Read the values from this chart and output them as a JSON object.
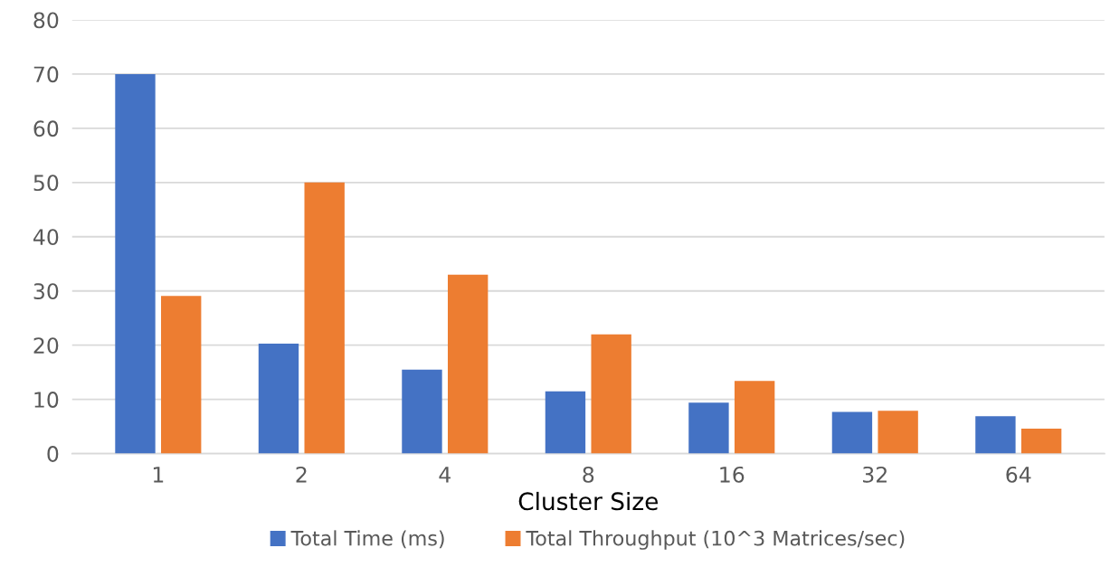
{
  "chart_data": {
    "type": "bar",
    "xlabel": "Cluster Size",
    "categories": [
      "1",
      "2",
      "4",
      "8",
      "16",
      "32",
      "64"
    ],
    "series": [
      {
        "name": "Total Time (ms)",
        "color": "#4472c4",
        "values": [
          70,
          20.3,
          15.5,
          11.5,
          9.4,
          7.7,
          6.9
        ]
      },
      {
        "name": "Total Throughput (10^3 Matrices/sec)",
        "color": "#ed7d31",
        "values": [
          29.1,
          50.0,
          33.0,
          22.0,
          13.4,
          7.9,
          4.6
        ]
      }
    ],
    "ylim": [
      0,
      80
    ],
    "yticks": [
      0,
      10,
      20,
      30,
      40,
      50,
      60,
      70,
      80
    ],
    "grid": "y",
    "legend": "bottom"
  }
}
